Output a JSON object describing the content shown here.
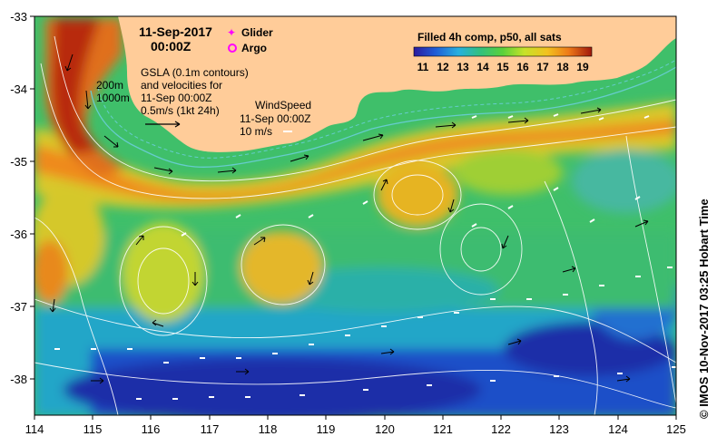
{
  "map": {
    "date_line1": "11-Sep-2017",
    "date_line2": "00:00Z",
    "legend_glider": "Glider",
    "legend_argo": "Argo",
    "gsla_text": [
      "GSLA (0.1m contours)",
      "and velocities for",
      "11-Sep 00:00Z",
      "0.5m/s (1kt 24h)"
    ],
    "isobath_labels": [
      "200m",
      "1000m"
    ],
    "wind_text": [
      "WindSpeed",
      "11-Sep 00:00Z",
      "10 m/s"
    ],
    "colorbar_title": "Filled 4h comp, p50, all sats",
    "colorbar_ticks": [
      "11",
      "12",
      "13",
      "14",
      "15",
      "16",
      "17",
      "18",
      "19"
    ],
    "lat_ticks": [
      "-33",
      "-34",
      "-35",
      "-36",
      "-37",
      "-38"
    ],
    "lon_ticks": [
      "114",
      "115",
      "116",
      "117",
      "118",
      "119",
      "120",
      "121",
      "122",
      "123",
      "124",
      "125"
    ],
    "credit": "© IMOS 10-Nov-2017 03:25 Hobart Time",
    "colors": {
      "land": "#FFCC99",
      "isobath_1000": "#66CCCC",
      "glider": "#FF00FF",
      "argo": "#FF00FF"
    }
  }
}
